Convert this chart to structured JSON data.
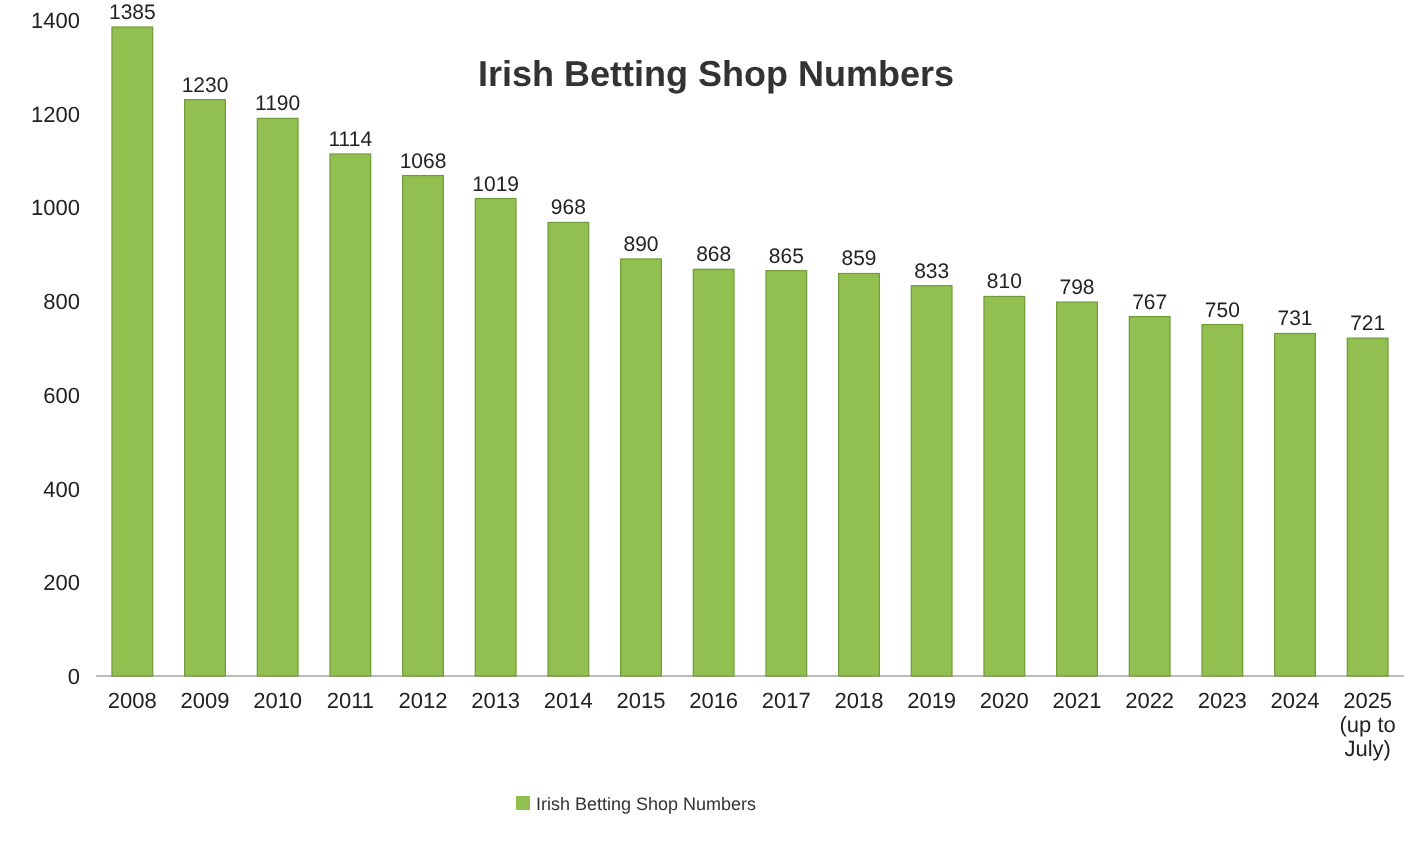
{
  "chart_data": {
    "type": "bar",
    "title": "Irish Betting Shop Numbers",
    "categories": [
      "2008",
      "2009",
      "2010",
      "2011",
      "2012",
      "2013",
      "2014",
      "2015",
      "2016",
      "2017",
      "2018",
      "2019",
      "2020",
      "2021",
      "2022",
      "2023",
      "2024",
      "2025 (up to July)"
    ],
    "series": [
      {
        "name": "Irish Betting Shop Numbers",
        "color": "#92c050",
        "values": [
          1385,
          1230,
          1190,
          1114,
          1068,
          1019,
          968,
          890,
          868,
          865,
          859,
          833,
          810,
          798,
          767,
          750,
          731,
          721
        ]
      }
    ],
    "ylim": [
      0,
      1400
    ],
    "yticks": [
      0,
      200,
      400,
      600,
      800,
      1000,
      1200,
      1400
    ],
    "data_labels": true,
    "legend": "bottom",
    "grid": false
  }
}
